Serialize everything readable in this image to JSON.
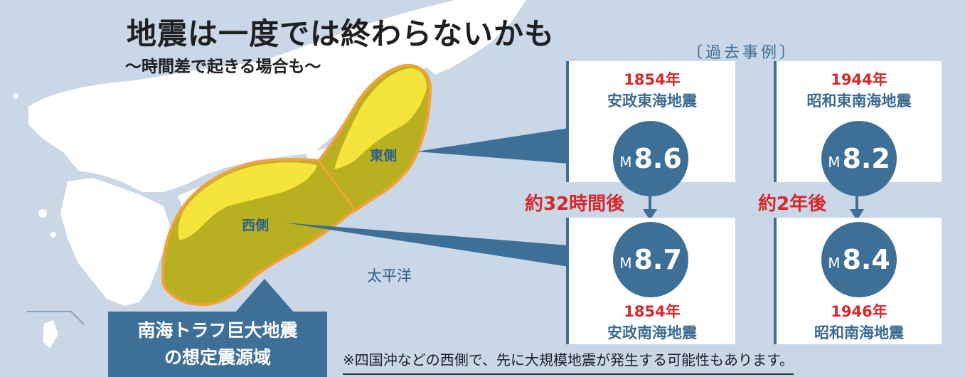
{
  "title": "地震は一度では終わらないかも",
  "subtitle": "～時間差で起きる場合も～",
  "past_cases_label": "〔過去事例〕",
  "map": {
    "east_label": "東側",
    "west_label": "西側",
    "ocean_label": "太平洋",
    "zone_label_line1": "南海トラフ巨大地震",
    "zone_label_line2": "の想定震源域"
  },
  "cases": [
    {
      "first_year": "1854年",
      "first_name": "安政東海地震",
      "first_m": "M",
      "first_mag": "8.6",
      "interval": "約32時間後",
      "second_m": "M",
      "second_mag": "8.7",
      "second_year": "1854年",
      "second_name": "安政南海地震"
    },
    {
      "first_year": "1944年",
      "first_name": "昭和東南海地震",
      "first_m": "M",
      "first_mag": "8.2",
      "interval": "約2年後",
      "second_m": "M",
      "second_mag": "8.4",
      "second_year": "1946年",
      "second_name": "昭和南海地震"
    }
  ],
  "note": "※四国沖などの西側で、先に大規模地震が発生する可能性もあります。",
  "colors": {
    "ocean": "#c9d7e7",
    "land": "#ffffff",
    "zone_fill": "#b9b021",
    "zone_border": "#f5a13a",
    "accent": "#3d6f97",
    "red": "#d8262a"
  }
}
